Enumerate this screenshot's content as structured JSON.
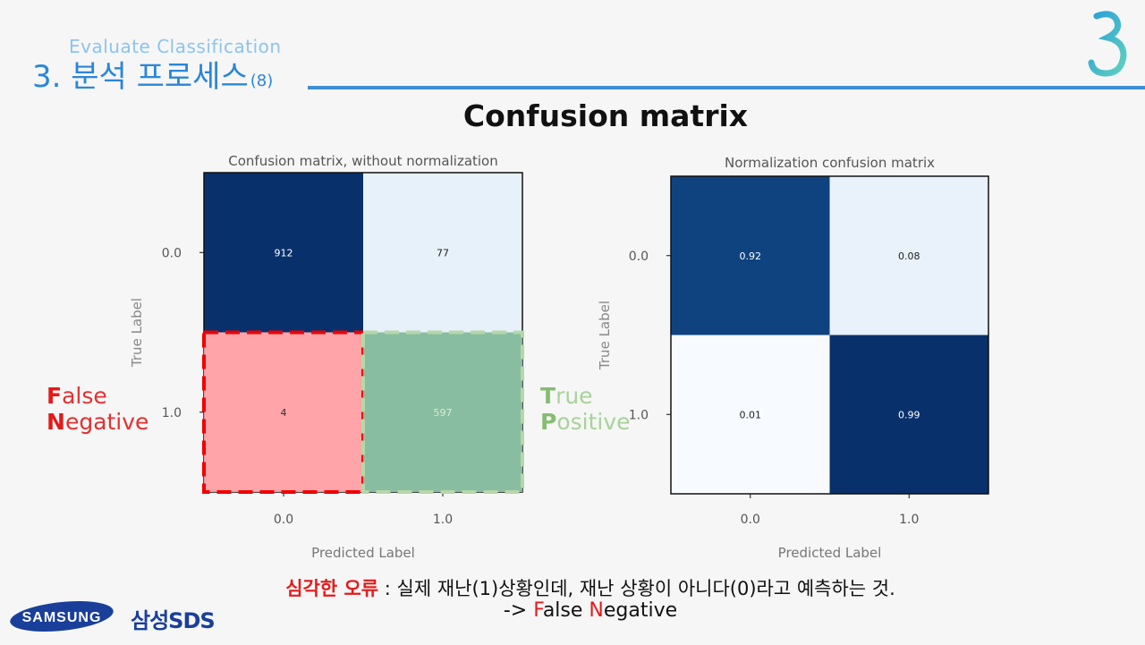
{
  "header": {
    "subtitle": "Evaluate Classification",
    "title": "3. 분석 프로세스",
    "title_number": "(8)"
  },
  "heading": "Confusion matrix",
  "chart_data": [
    {
      "type": "heatmap",
      "title": "Confusion matrix, without normalization",
      "xlabel": "Predicted Label",
      "ylabel": "True Label",
      "x_categories": [
        "0.0",
        "1.0"
      ],
      "y_categories": [
        "0.0",
        "1.0"
      ],
      "values": [
        [
          912,
          77
        ],
        [
          4,
          597
        ]
      ],
      "value_labels": [
        [
          "912",
          "77"
        ],
        [
          "4",
          "597"
        ]
      ],
      "colormap": "Blues",
      "highlights": [
        {
          "row": 1,
          "col": 0,
          "color": "#f00000",
          "label_first": "F",
          "label_rest": "alse",
          "label2_first": "N",
          "label2_rest": "egative"
        },
        {
          "row": 1,
          "col": 1,
          "color": "#b6d7a8",
          "label_first": "T",
          "label_rest": "rue",
          "label2_first": "P",
          "label2_rest": "ositive"
        }
      ]
    },
    {
      "type": "heatmap",
      "title": "Normalization confusion matrix",
      "xlabel": "Predicted Label",
      "ylabel": "True Label",
      "x_categories": [
        "0.0",
        "1.0"
      ],
      "y_categories": [
        "0.0",
        "1.0"
      ],
      "values": [
        [
          0.92,
          0.08
        ],
        [
          0.01,
          0.99
        ]
      ],
      "value_labels": [
        [
          "0.92",
          "0.08"
        ],
        [
          "0.01",
          "0.99"
        ]
      ],
      "colormap": "Blues"
    }
  ],
  "footer": {
    "line1_highlight": "심각한 오류",
    "line1_rest": " : 실제 재난(1)상황인데, 재난 상황이 아니다(0)라고 예측하는 것.",
    "line2_prefix": "-> ",
    "line2_f": "F",
    "line2_mid": "alse ",
    "line2_n": "N",
    "line2_end": "egative"
  },
  "branding": {
    "samsung": "SAMSUNG",
    "sds": "삼성SDS"
  }
}
